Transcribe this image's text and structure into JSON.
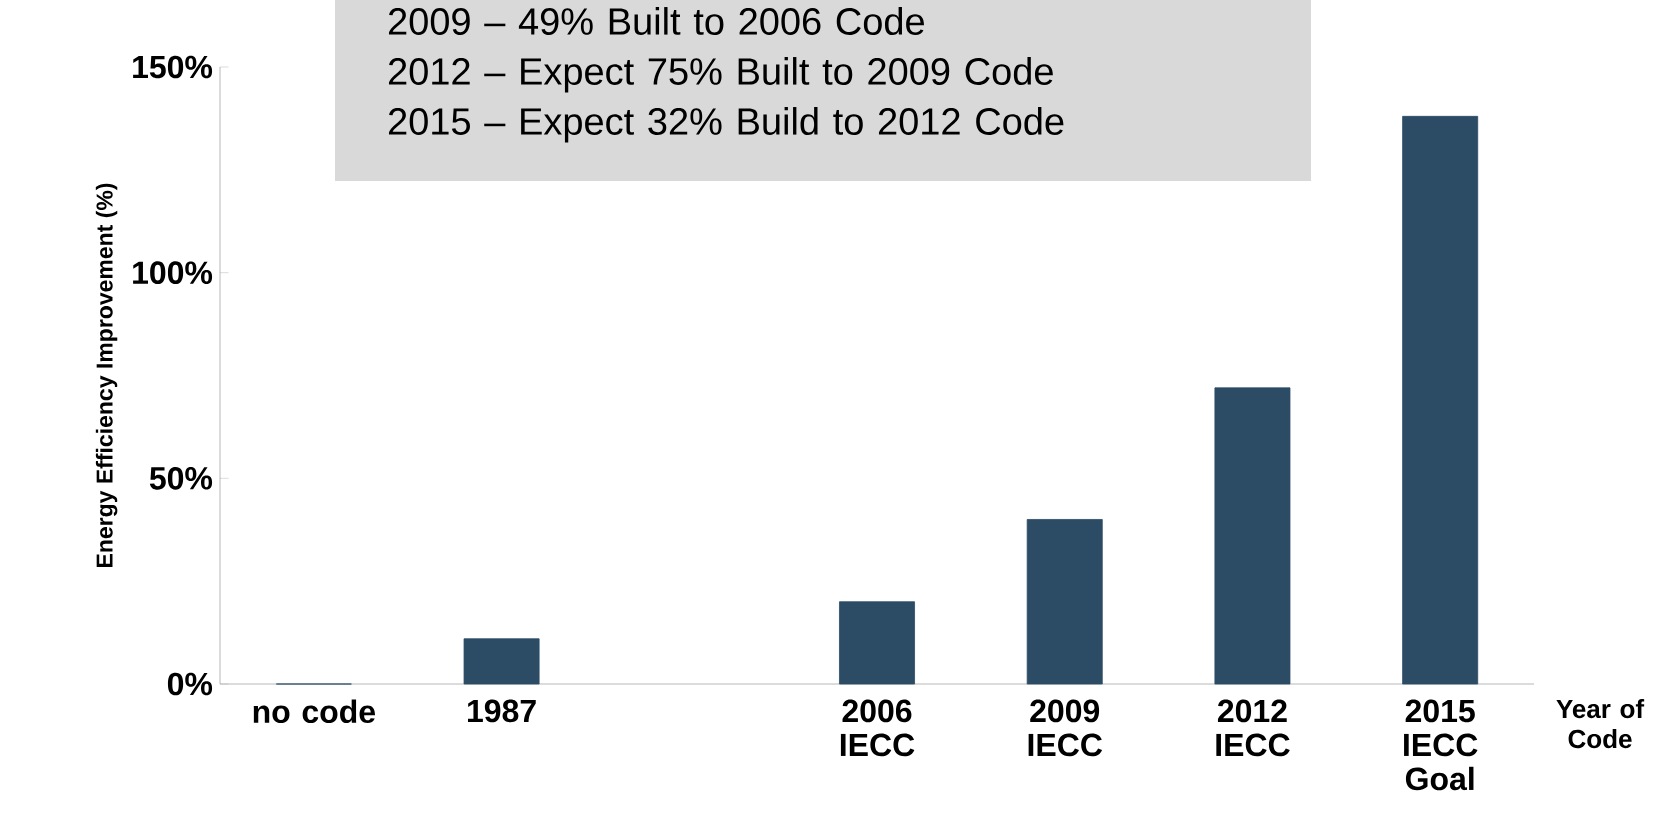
{
  "chart_data": {
    "type": "bar",
    "categories": [
      "no code",
      "1987",
      null,
      "2006 IECC",
      "2009 IECC",
      "2012 IECC",
      "2015 IECC Goal"
    ],
    "values": [
      0,
      11,
      null,
      20,
      40,
      72,
      138
    ],
    "color": "#2c4b64",
    "ylabel": "Energy Efficiency Improvement (%)",
    "xlabel": "Year of Code",
    "ylim": [
      0,
      150
    ],
    "yticks": [
      {
        "value": 0,
        "label": "0%"
      },
      {
        "value": 50,
        "label": "50%"
      },
      {
        "value": 100,
        "label": "100%"
      },
      {
        "value": 150,
        "label": "150%"
      }
    ],
    "annotations": [
      "2009 – 49% Built to 2006 Code",
      "2012 – Expect 75% Built to 2009 Code",
      "2015 – Expect 32% Build to 2012 Code"
    ]
  }
}
